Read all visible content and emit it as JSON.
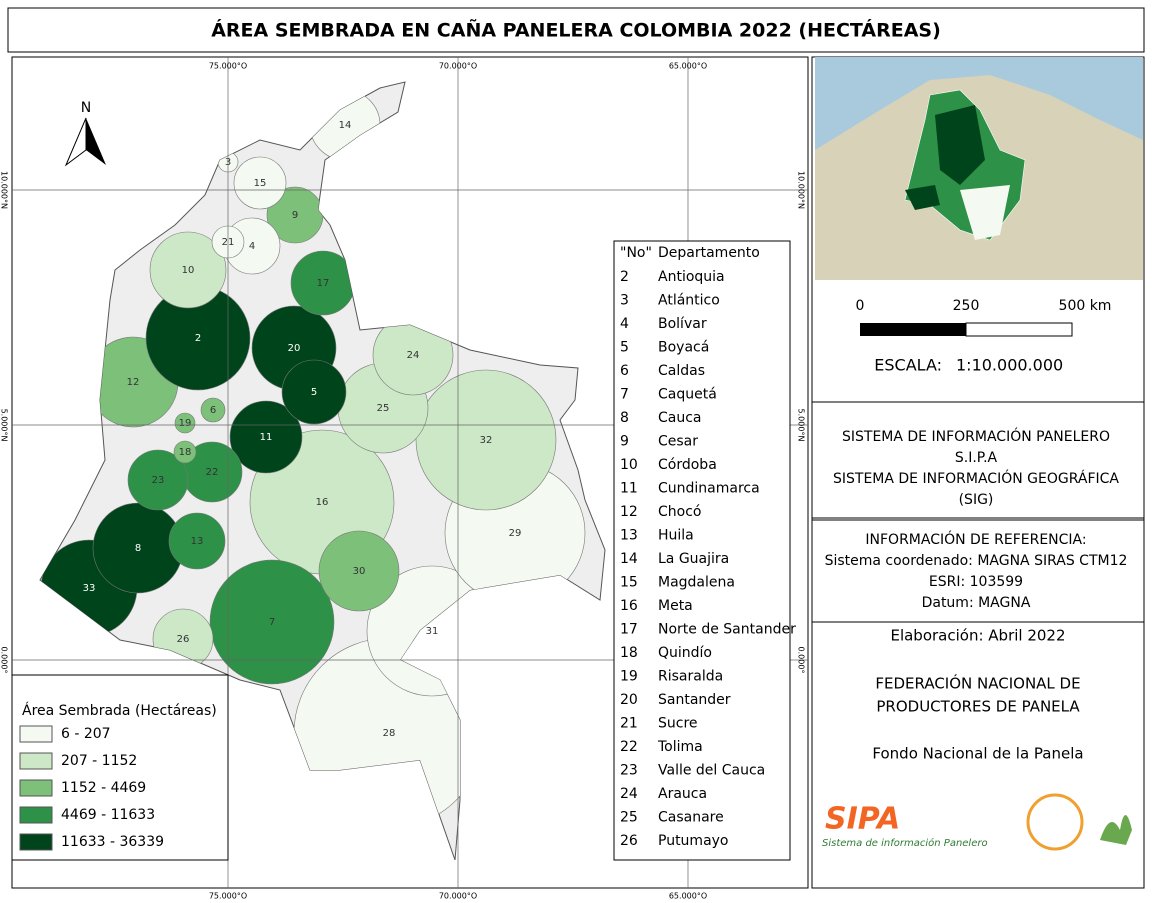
{
  "title": "ÁREA SEMBRADA EN CAÑA PANELERA COLOMBIA 2022 (HECTÁREAS)",
  "graticule": {
    "lon_labels": [
      "75.000°O",
      "70.000°O",
      "65.000°O"
    ],
    "lat_labels": [
      "10.000°N",
      "5.000°N",
      "0.000°"
    ]
  },
  "north": "N",
  "legend": {
    "title": "Área Sembrada (Hectáreas)",
    "classes": [
      {
        "label": "6 - 207",
        "color": "#f4faf1"
      },
      {
        "label": "207 - 1152",
        "color": "#cde8c6"
      },
      {
        "label": "1152 - 4469",
        "color": "#7cc07a"
      },
      {
        "label": "4469 - 11633",
        "color": "#2e9148"
      },
      {
        "label": "11633 - 36339",
        "color": "#00441b"
      }
    ]
  },
  "department_list": {
    "header": [
      "\"No\"",
      "Departamento"
    ],
    "rows": [
      [
        "2",
        "Antioquia"
      ],
      [
        "3",
        "Atlántico"
      ],
      [
        "4",
        "Bolívar"
      ],
      [
        "5",
        "Boyacá"
      ],
      [
        "6",
        "Caldas"
      ],
      [
        "7",
        "Caquetá"
      ],
      [
        "8",
        "Cauca"
      ],
      [
        "9",
        "Cesar"
      ],
      [
        "10",
        "Córdoba"
      ],
      [
        "11",
        "Cundinamarca"
      ],
      [
        "12",
        "Chocó"
      ],
      [
        "13",
        "Huila"
      ],
      [
        "14",
        "La Guajira"
      ],
      [
        "15",
        "Magdalena"
      ],
      [
        "16",
        "Meta"
      ],
      [
        "17",
        "Norte de Santander"
      ],
      [
        "18",
        "Quindío"
      ],
      [
        "19",
        "Risaralda"
      ],
      [
        "20",
        "Santander"
      ],
      [
        "21",
        "Sucre"
      ],
      [
        "22",
        "Tolima"
      ],
      [
        "23",
        "Valle del Cauca"
      ],
      [
        "24",
        "Arauca"
      ],
      [
        "25",
        "Casanare"
      ],
      [
        "26",
        "Putumayo"
      ]
    ]
  },
  "map_labels": [
    {
      "label": "28",
      "class": 0
    },
    {
      "label": "31",
      "class": 0
    },
    {
      "label": "29",
      "class": 0
    },
    {
      "label": "32",
      "class": 1
    },
    {
      "label": "16",
      "class": 1
    },
    {
      "label": "7",
      "class": 3
    },
    {
      "label": "30",
      "class": 2
    },
    {
      "label": "25",
      "class": 1
    },
    {
      "label": "24",
      "class": 1
    },
    {
      "label": "33",
      "class": 4
    },
    {
      "label": "8",
      "class": 4
    },
    {
      "label": "12",
      "class": 2
    },
    {
      "label": "2",
      "class": 4
    },
    {
      "label": "20",
      "class": 4
    },
    {
      "label": "10",
      "class": 1
    },
    {
      "label": "11",
      "class": 4
    },
    {
      "label": "5",
      "class": 4
    },
    {
      "label": "17",
      "class": 3
    },
    {
      "label": "9",
      "class": 2
    },
    {
      "label": "14",
      "class": 0
    },
    {
      "label": "15",
      "class": 0
    },
    {
      "label": "4",
      "class": 0
    },
    {
      "label": "21",
      "class": 0
    },
    {
      "label": "3",
      "class": 0
    },
    {
      "label": "22",
      "class": 3
    },
    {
      "label": "23",
      "class": 3
    },
    {
      "label": "13",
      "class": 3
    },
    {
      "label": "26",
      "class": 1
    },
    {
      "label": "6",
      "class": 2
    },
    {
      "label": "19",
      "class": 2
    },
    {
      "label": "18",
      "class": 2
    }
  ],
  "scale": {
    "ticks": [
      "0",
      "250",
      "500 km"
    ],
    "label": "ESCALA:",
    "ratio": "1:10.000.000"
  },
  "info": [
    "SISTEMA DE INFORMACIÓN PANELERO",
    "S.I.P.A",
    "SISTEMA DE INFORMACIÓN GEOGRÁFICA",
    "(SIG)"
  ],
  "reference": [
    "INFORMACIÓN DE REFERENCIA:",
    "Sistema coordenado: MAGNA SIRAS CTM12",
    "ESRI: 103599",
    "Datum: MAGNA"
  ],
  "elaboration": "Elaboración: Abril 2022",
  "organization": [
    "FEDERACIÓN NACIONAL DE",
    "PRODUCTORES DE PANELA"
  ],
  "fund": "Fondo Nacional de la Panela",
  "logos": {
    "sipa": "SIPA",
    "sipa_sub": "Sistema de información Panelero"
  }
}
